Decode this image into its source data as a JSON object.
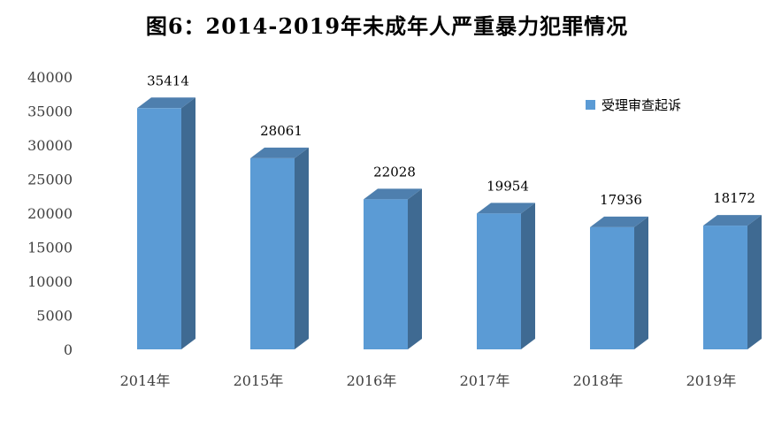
{
  "chart_data": {
    "type": "bar",
    "title": "图6：2014-2019年未成年人严重暴力犯罪情况",
    "categories": [
      "2014年",
      "2015年",
      "2016年",
      "2017年",
      "2018年",
      "2019年"
    ],
    "series": [
      {
        "name": "受理审查起诉",
        "values": [
          35414,
          28061,
          22028,
          19954,
          17936,
          18172
        ],
        "color": "#5B9BD5"
      }
    ],
    "data_labels": [
      "35414",
      "28061",
      "22028",
      "19954",
      "17936",
      "18172"
    ],
    "yticks": [
      "0",
      "5000",
      "10000",
      "15000",
      "20000",
      "25000",
      "30000",
      "35000",
      "40000"
    ],
    "ylim": [
      0,
      40000
    ],
    "style": "3d-column",
    "grid": false,
    "legend_position": "top-right"
  }
}
